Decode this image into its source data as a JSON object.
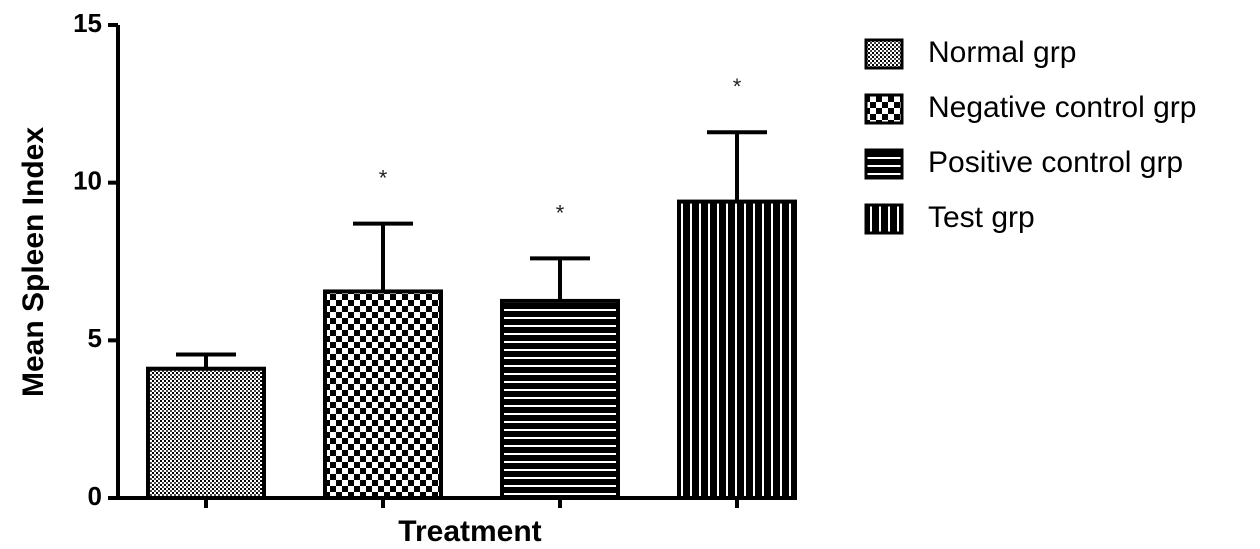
{
  "chart_data": {
    "type": "bar",
    "xlabel": "Treatment",
    "ylabel": "Mean Spleen Index",
    "ylim": [
      0,
      15
    ],
    "y_ticks": [
      "0",
      "5",
      "10",
      "15"
    ],
    "grid": false,
    "legend_position": "right",
    "series": [
      {
        "name": "Normal grp",
        "value": 4.1,
        "error": 0.45,
        "significance": "",
        "pattern": "dots"
      },
      {
        "name": "Negative control grp",
        "value": 6.55,
        "error": 2.15,
        "significance": "*",
        "pattern": "checker"
      },
      {
        "name": "Positive control grp",
        "value": 6.25,
        "error": 1.35,
        "significance": "*",
        "pattern": "hlines"
      },
      {
        "name": "Test grp",
        "value": 9.4,
        "error": 2.2,
        "significance": "*",
        "pattern": "vlines"
      }
    ]
  }
}
